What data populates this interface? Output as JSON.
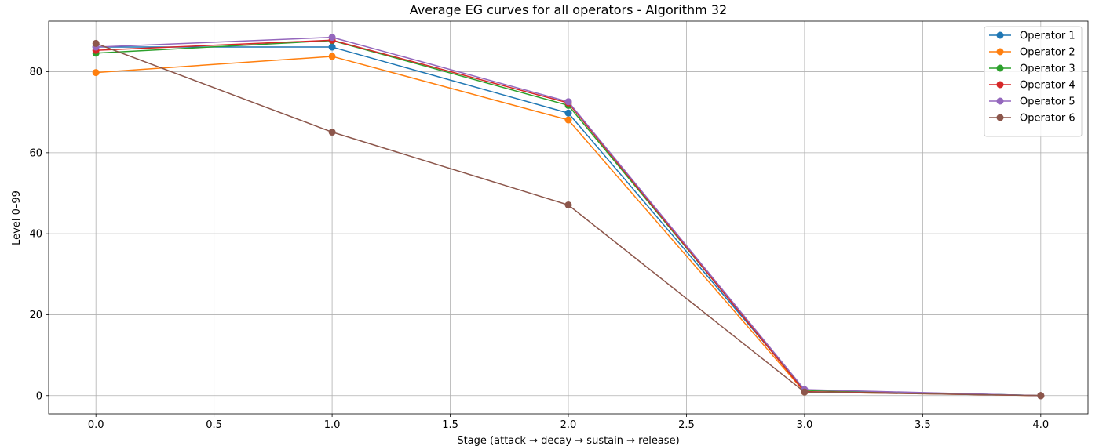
{
  "chart_data": {
    "type": "line",
    "title": "Average EG curves for all operators - Algorithm 32",
    "xlabel": "Stage (attack → decay → sustain → release)",
    "ylabel": "Level 0–99",
    "xlim": [
      -0.2,
      4.2
    ],
    "ylim": [
      -4.5,
      92.5
    ],
    "xticks": [
      0.0,
      0.5,
      1.0,
      1.5,
      2.0,
      2.5,
      3.0,
      3.5,
      4.0
    ],
    "xtick_labels": [
      "0.0",
      "0.5",
      "1.0",
      "1.5",
      "2.0",
      "2.5",
      "3.0",
      "3.5",
      "4.0"
    ],
    "yticks": [
      0,
      20,
      40,
      60,
      80
    ],
    "ytick_labels": [
      "0",
      "20",
      "40",
      "60",
      "80"
    ],
    "grid": true,
    "legend_position": "top-right",
    "x": [
      0,
      1,
      2,
      3,
      4
    ],
    "series": [
      {
        "name": "Operator 1",
        "color": "#1f77b4",
        "values": [
          86.1,
          86.1,
          69.8,
          1.4,
          0
        ]
      },
      {
        "name": "Operator 2",
        "color": "#ff7f0e",
        "values": [
          79.8,
          83.8,
          68.1,
          0.9,
          0
        ]
      },
      {
        "name": "Operator 3",
        "color": "#2ca02c",
        "values": [
          84.6,
          87.7,
          71.7,
          1.3,
          0
        ]
      },
      {
        "name": "Operator 4",
        "color": "#d62728",
        "values": [
          85.3,
          87.8,
          72.3,
          1.0,
          0
        ]
      },
      {
        "name": "Operator 5",
        "color": "#9467bd",
        "values": [
          86.1,
          88.5,
          72.6,
          1.5,
          0
        ]
      },
      {
        "name": "Operator 6",
        "color": "#8c564b",
        "values": [
          87.0,
          65.1,
          47.1,
          0.9,
          0
        ]
      }
    ]
  }
}
